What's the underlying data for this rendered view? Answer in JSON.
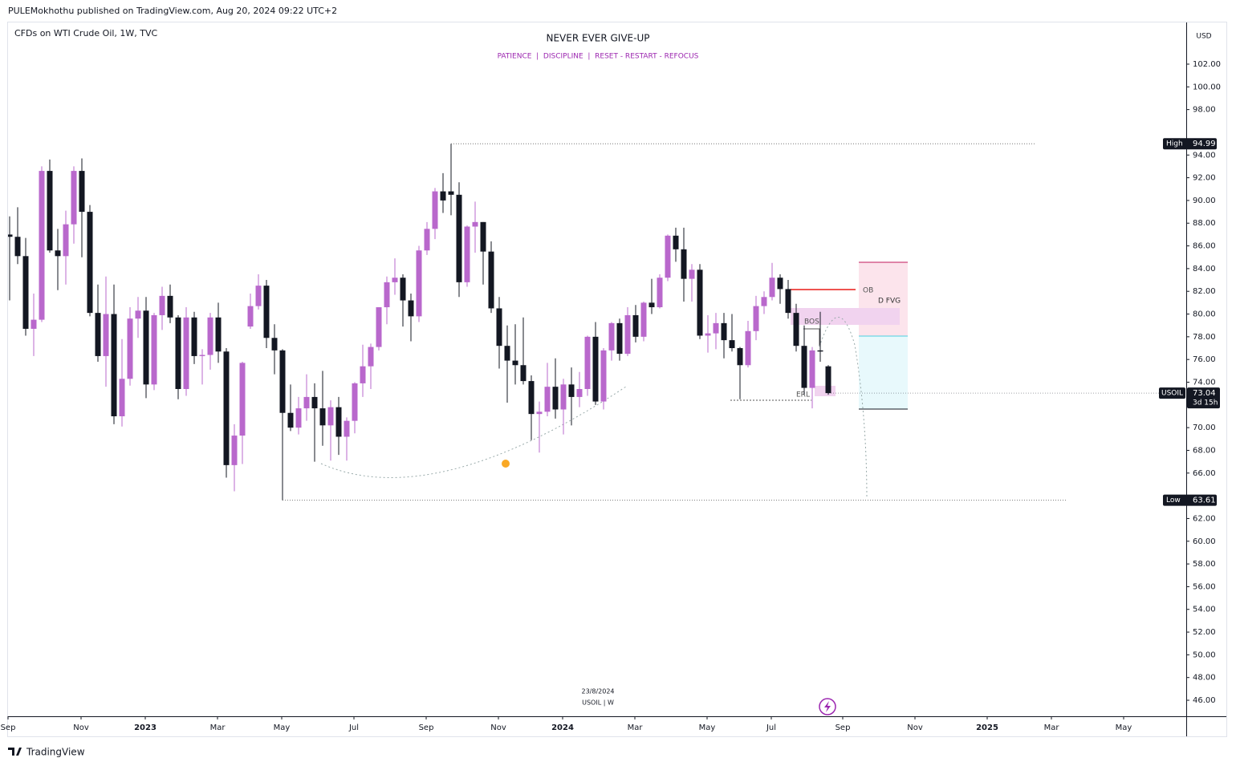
{
  "header": {
    "published": "PULEMokhothu published on TradingView.com, Aug 20, 2024 09:22 UTC+2",
    "brand": "TradingView"
  },
  "chart_data": {
    "type": "candlestick",
    "symbol_info": "CFDs on WTI Crude Oil, 1W, TVC",
    "title": "NEVER EVER GIVE-UP",
    "subtitle": "PATIENCE  |  DISCIPLINE  |  RESET - RESTART - REFOCUS",
    "currency": "USD",
    "footer_date": "23/8/2024",
    "footer_symbol": "USOIL | W",
    "up_color": "#b968cc",
    "down_color": "#131722",
    "categories": [
      null,
      null,
      null,
      null,
      null,
      null,
      null,
      null,
      null,
      null,
      null,
      null,
      null,
      null,
      null,
      null,
      null,
      null,
      null,
      null,
      null,
      null,
      null,
      null,
      null,
      null,
      null,
      null,
      null,
      null,
      null,
      null,
      null,
      null,
      null,
      null,
      null,
      null,
      null,
      null,
      null,
      null,
      null,
      null,
      null,
      null,
      null,
      null,
      null,
      null,
      null,
      null,
      null,
      null,
      null,
      null,
      null,
      null,
      null,
      null,
      null,
      null,
      null,
      null,
      null,
      null,
      null,
      null,
      null,
      null,
      null,
      null,
      null,
      null,
      null,
      null,
      null,
      null,
      null,
      null,
      null,
      null,
      null,
      null,
      null,
      null,
      null,
      null,
      null,
      null,
      null,
      null,
      null,
      null,
      null,
      null,
      null,
      null,
      null,
      null,
      null,
      null,
      null
    ],
    "open": [
      87.0,
      86.8,
      85.1,
      78.7,
      79.5,
      92.6,
      85.6,
      85.1,
      87.9,
      92.6,
      89.0,
      80.1,
      76.3,
      80.0,
      71.0,
      74.3,
      79.6,
      80.3,
      73.8,
      79.9,
      81.6,
      79.7,
      73.4,
      79.7,
      76.3,
      76.4,
      79.7,
      76.7,
      66.7,
      69.3,
      78.9,
      80.7,
      82.5,
      77.9,
      76.8,
      71.3,
      70.0,
      71.7,
      72.7,
      71.7,
      70.2,
      71.8,
      69.2,
      70.6,
      73.9,
      75.4,
      77.1,
      80.6,
      82.8,
      83.2,
      81.2,
      79.8,
      85.6,
      87.5,
      90.8,
      90.8,
      90.5,
      82.8,
      87.7,
      88.1,
      85.5,
      80.5,
      77.2,
      75.9,
      75.5,
      74.1,
      71.2,
      71.4,
      73.6,
      71.6,
      73.8,
      72.7,
      73.4,
      78.0,
      72.3,
      76.8,
      79.2,
      76.5,
      79.9,
      78.0,
      81.0,
      80.6,
      83.2,
      86.9,
      85.7,
      83.1,
      83.9,
      78.1,
      78.3,
      79.2,
      77.7,
      77.0,
      75.5,
      78.5,
      80.7,
      81.5,
      83.2,
      82.2,
      80.1,
      77.2,
      73.5,
      76.8,
      75.4
    ],
    "high": [
      88.6,
      89.4,
      86.7,
      81.8,
      93.0,
      93.6,
      87.5,
      89.1,
      93.0,
      93.7,
      89.6,
      82.6,
      83.3,
      82.6,
      77.8,
      80.6,
      81.5,
      81.5,
      80.1,
      82.4,
      82.6,
      79.9,
      80.6,
      80.2,
      76.9,
      80.1,
      81.0,
      77.0,
      70.3,
      75.8,
      81.8,
      83.5,
      83.0,
      79.1,
      76.9,
      73.8,
      72.7,
      74.7,
      73.9,
      75.0,
      72.4,
      72.7,
      70.9,
      74.0,
      77.3,
      77.4,
      80.6,
      83.3,
      84.9,
      83.5,
      81.8,
      86.0,
      88.1,
      91.1,
      92.4,
      94.99,
      91.6,
      87.8,
      89.9,
      88.1,
      86.4,
      81.5,
      79.0,
      79.1,
      79.7,
      74.6,
      72.3,
      75.7,
      76.1,
      74.3,
      75.3,
      74.9,
      78.1,
      79.3,
      77.0,
      79.3,
      79.6,
      80.6,
      80.8,
      81.1,
      83.1,
      83.5,
      87.0,
      87.6,
      87.6,
      84.4,
      84.4,
      79.9,
      80.1,
      80.1,
      80.0,
      77.1,
      79.4,
      81.6,
      82.0,
      84.5,
      83.5,
      83.0,
      80.9,
      79.0,
      77.1,
      80.2,
      75.5
    ],
    "low": [
      81.2,
      84.4,
      78.1,
      76.3,
      79.3,
      85.4,
      82.1,
      82.6,
      86.2,
      85.0,
      79.8,
      75.8,
      73.6,
      70.3,
      70.1,
      73.7,
      77.9,
      72.6,
      73.3,
      78.6,
      79.2,
      72.5,
      72.8,
      75.6,
      73.8,
      75.1,
      75.7,
      65.6,
      64.4,
      66.8,
      78.7,
      80.4,
      77.0,
      74.7,
      63.61,
      69.7,
      69.4,
      70.6,
      67.0,
      68.4,
      67.1,
      67.6,
      67.1,
      69.5,
      72.7,
      73.4,
      76.8,
      79.1,
      81.7,
      78.9,
      77.6,
      79.3,
      85.2,
      86.6,
      88.9,
      88.7,
      81.5,
      82.4,
      85.4,
      82.6,
      80.1,
      75.2,
      72.2,
      73.8,
      73.8,
      68.9,
      67.8,
      71.0,
      70.8,
      69.4,
      70.2,
      71.8,
      72.8,
      72.0,
      71.6,
      75.9,
      75.9,
      76.3,
      77.5,
      77.6,
      80.0,
      80.5,
      82.9,
      84.6,
      81.1,
      81.1,
      77.8,
      76.6,
      76.9,
      76.1,
      76.7,
      72.5,
      75.3,
      77.7,
      80.0,
      81.2,
      80.9,
      79.6,
      76.7,
      72.9,
      71.7,
      75.8,
      72.9
    ],
    "close": [
      86.8,
      85.1,
      78.7,
      79.5,
      92.6,
      85.6,
      85.1,
      87.9,
      92.6,
      89.0,
      80.1,
      76.3,
      80.0,
      71.0,
      74.3,
      79.6,
      80.3,
      73.8,
      79.9,
      81.6,
      79.7,
      73.4,
      79.7,
      76.3,
      76.4,
      79.7,
      76.7,
      66.7,
      69.3,
      75.7,
      80.7,
      82.5,
      77.9,
      76.8,
      71.3,
      70.0,
      71.7,
      72.7,
      71.7,
      70.2,
      71.8,
      69.2,
      70.6,
      73.9,
      75.4,
      77.1,
      80.6,
      82.8,
      83.2,
      81.2,
      79.8,
      85.6,
      87.5,
      90.8,
      90.0,
      90.5,
      82.8,
      87.7,
      88.1,
      85.5,
      80.5,
      77.2,
      75.9,
      75.5,
      74.1,
      71.2,
      71.4,
      73.6,
      71.6,
      73.8,
      72.7,
      73.4,
      78.0,
      72.3,
      76.8,
      79.2,
      76.5,
      79.9,
      78.0,
      81.0,
      80.6,
      83.2,
      86.9,
      85.7,
      83.1,
      83.9,
      78.1,
      78.3,
      79.2,
      77.7,
      77.0,
      75.5,
      78.5,
      80.7,
      81.5,
      83.2,
      82.2,
      80.1,
      77.2,
      73.5,
      76.8,
      76.7,
      73.04
    ],
    "xlim": [
      -0.2,
      146.6
    ],
    "xticks": [
      {
        "value": -0.2,
        "label": "Sep"
      },
      {
        "value": 8.9,
        "label": "Nov"
      },
      {
        "value": 16.9,
        "label": "2023"
      },
      {
        "value": 25.9,
        "label": "Mar"
      },
      {
        "value": 33.9,
        "label": "May"
      },
      {
        "value": 42.9,
        "label": "Jul"
      },
      {
        "value": 51.9,
        "label": "Sep"
      },
      {
        "value": 60.9,
        "label": "Nov"
      },
      {
        "value": 68.9,
        "label": "2024"
      },
      {
        "value": 77.9,
        "label": "Mar"
      },
      {
        "value": 86.9,
        "label": "May"
      },
      {
        "value": 94.9,
        "label": "Jul"
      },
      {
        "value": 103.8,
        "label": "Sep"
      },
      {
        "value": 112.8,
        "label": "Nov"
      },
      {
        "value": 121.8,
        "label": "2025"
      },
      {
        "value": 129.8,
        "label": "Mar"
      },
      {
        "value": 138.8,
        "label": "May"
      }
    ],
    "ylim": [
      44.59,
      105.67
    ],
    "yticks": [
      {
        "value": 46,
        "label": "46.00"
      },
      {
        "value": 48,
        "label": "48.00"
      },
      {
        "value": 50,
        "label": "50.00"
      },
      {
        "value": 52,
        "label": "52.00"
      },
      {
        "value": 54,
        "label": "54.00"
      },
      {
        "value": 56,
        "label": "56.00"
      },
      {
        "value": 58,
        "label": "58.00"
      },
      {
        "value": 60,
        "label": "60.00"
      },
      {
        "value": 62,
        "label": "62.00"
      },
      {
        "value": 66,
        "label": "66.00"
      },
      {
        "value": 68,
        "label": "68.00"
      },
      {
        "value": 70,
        "label": "70.00"
      },
      {
        "value": 74,
        "label": "74.00"
      },
      {
        "value": 76,
        "label": "76.00"
      },
      {
        "value": 78,
        "label": "78.00"
      },
      {
        "value": 80,
        "label": "80.00"
      },
      {
        "value": 82,
        "label": "82.00"
      },
      {
        "value": 84,
        "label": "84.00"
      },
      {
        "value": 86,
        "label": "86.00"
      },
      {
        "value": 88,
        "label": "88.00"
      },
      {
        "value": 90,
        "label": "90.00"
      },
      {
        "value": 92,
        "label": "92.00"
      },
      {
        "value": 94,
        "label": "94.00"
      },
      {
        "value": 98,
        "label": "98.00"
      },
      {
        "value": 100,
        "label": "100.00"
      },
      {
        "value": 102,
        "label": "102.00"
      }
    ],
    "grid": false,
    "price_labels": [
      {
        "name": "High",
        "value": 94.99
      },
      {
        "name": "Low",
        "value": 63.61
      }
    ],
    "last_price": {
      "symbol": "USOIL",
      "value": 73.04,
      "countdown": "3d 15h"
    },
    "annotations": [
      "OB",
      "D FVG",
      "BOS",
      "ERL"
    ]
  }
}
